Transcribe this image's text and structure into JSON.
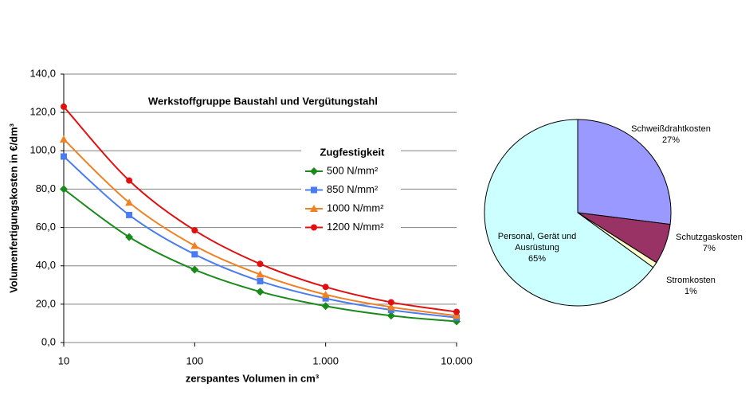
{
  "chart_data": [
    {
      "type": "line",
      "title": "Werkstoffgruppe Baustahl und Vergütungstahl",
      "x_label": "zerspantes Volumen in cm³",
      "y_label": "Volumenfertigungskosten in €/dm³",
      "legend_title": "Zugfestigkeit",
      "x": [
        10,
        31.6,
        100,
        316,
        1000,
        3162,
        10000
      ],
      "log_x": true,
      "grid": true,
      "xlim": [
        10,
        10000
      ],
      "xticks": [
        10,
        100,
        {
          "value": 1000,
          "label": "1.000"
        },
        {
          "value": 10000,
          "label": "10.000"
        }
      ],
      "ylim": [
        0,
        140
      ],
      "yticks": [
        {
          "value": 0,
          "label": "0,0"
        },
        {
          "value": 20,
          "label": "20,0"
        },
        {
          "value": 40,
          "label": "40,0"
        },
        {
          "value": 60,
          "label": "60,0"
        },
        {
          "value": 80,
          "label": "80,0"
        },
        {
          "value": 100,
          "label": "100,0"
        },
        {
          "value": 120,
          "label": "120,0"
        },
        {
          "value": 140,
          "label": "140,0"
        }
      ],
      "series": [
        {
          "name": "500 N/mm²",
          "color": "#1a8a1a",
          "marker": "diamond",
          "values": [
            80,
            55,
            38,
            26.5,
            19,
            14,
            11
          ]
        },
        {
          "name": "850 N/mm²",
          "color": "#4a7cf0",
          "marker": "square",
          "values": [
            97,
            66.5,
            46,
            32,
            23,
            17,
            13
          ]
        },
        {
          "name": "1000 N/mm²",
          "color": "#f08020",
          "marker": "triangle",
          "values": [
            106,
            73,
            50.5,
            35.5,
            25,
            18.5,
            14
          ]
        },
        {
          "name": "1200 N/mm²",
          "color": "#e01010",
          "marker": "circle",
          "values": [
            123,
            84.5,
            58.5,
            41,
            29,
            21,
            16
          ]
        }
      ]
    },
    {
      "type": "pie",
      "categories": [
        "Schweißdrahtkosten",
        "Schutzgaskosten",
        "Stromkosten",
        "Personal, Gerät und Ausrüstung"
      ],
      "values": [
        27,
        7,
        1,
        65
      ],
      "value_labels": [
        "27%",
        "7%",
        "1%",
        "65%"
      ],
      "colors": [
        "#9999ff",
        "#993366",
        "#ffffcc",
        "#ccffff"
      ]
    }
  ]
}
